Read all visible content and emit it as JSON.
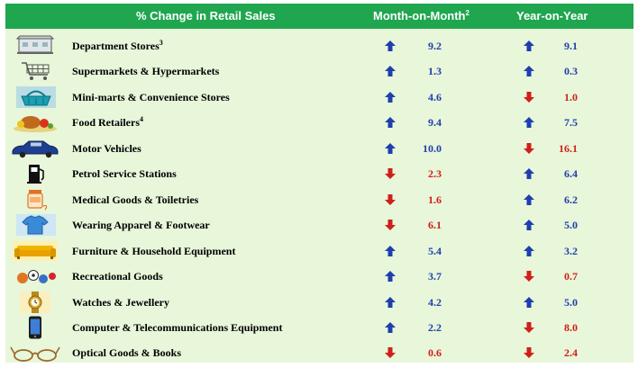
{
  "header": {
    "category": "% Change in Retail Sales",
    "month_on_month": "Month-on-Month",
    "month_on_month_note": "2",
    "year_on_year": "Year-on-Year"
  },
  "colors": {
    "header_bg": "#1fa64f",
    "table_bg": "#e8f6da",
    "up": "#1f3fae",
    "down": "#d0201a"
  },
  "chart_data": {
    "type": "table",
    "columns": [
      "% Change in Retail Sales",
      "Month-on-Month",
      "Year-on-Year"
    ],
    "rows": [
      {
        "label": "Department Stores",
        "note": "3",
        "icon": "department-store-icon",
        "mom": {
          "dir": "up",
          "value": "9.2"
        },
        "yoy": {
          "dir": "up",
          "value": "9.1"
        }
      },
      {
        "label": "Supermarkets & Hypermarkets",
        "note": "",
        "icon": "shopping-cart-icon",
        "mom": {
          "dir": "up",
          "value": "1.3"
        },
        "yoy": {
          "dir": "up",
          "value": "0.3"
        }
      },
      {
        "label": "Mini-marts & Convenience Stores",
        "note": "",
        "icon": "shopping-basket-icon",
        "mom": {
          "dir": "up",
          "value": "4.6"
        },
        "yoy": {
          "dir": "down",
          "value": "1.0"
        }
      },
      {
        "label": "Food Retailers",
        "note": "4",
        "icon": "food-icon",
        "mom": {
          "dir": "up",
          "value": "9.4"
        },
        "yoy": {
          "dir": "up",
          "value": "7.5"
        }
      },
      {
        "label": "Motor Vehicles",
        "note": "",
        "icon": "car-icon",
        "mom": {
          "dir": "up",
          "value": "10.0"
        },
        "yoy": {
          "dir": "down",
          "value": "16.1"
        }
      },
      {
        "label": "Petrol Service Stations",
        "note": "",
        "icon": "fuel-pump-icon",
        "mom": {
          "dir": "down",
          "value": "2.3"
        },
        "yoy": {
          "dir": "up",
          "value": "6.4"
        }
      },
      {
        "label": "Medical Goods & Toiletries",
        "note": "",
        "icon": "medicine-jar-icon",
        "mom": {
          "dir": "down",
          "value": "1.6"
        },
        "yoy": {
          "dir": "up",
          "value": "6.2"
        }
      },
      {
        "label": "Wearing Apparel & Footwear",
        "note": "",
        "icon": "t-shirt-icon",
        "mom": {
          "dir": "down",
          "value": "6.1"
        },
        "yoy": {
          "dir": "up",
          "value": "5.0"
        }
      },
      {
        "label": "Furniture & Household Equipment",
        "note": "",
        "icon": "sofa-icon",
        "mom": {
          "dir": "up",
          "value": "5.4"
        },
        "yoy": {
          "dir": "up",
          "value": "3.2"
        }
      },
      {
        "label": "Recreational Goods",
        "note": "",
        "icon": "sports-balls-icon",
        "mom": {
          "dir": "up",
          "value": "3.7"
        },
        "yoy": {
          "dir": "down",
          "value": "0.7"
        }
      },
      {
        "label": "Watches & Jewellery",
        "note": "",
        "icon": "watch-icon",
        "mom": {
          "dir": "up",
          "value": "4.2"
        },
        "yoy": {
          "dir": "up",
          "value": "5.0"
        }
      },
      {
        "label": "Computer & Telecommunications Equipment",
        "note": "",
        "icon": "mobile-phone-icon",
        "mom": {
          "dir": "up",
          "value": "2.2"
        },
        "yoy": {
          "dir": "down",
          "value": "8.0"
        }
      },
      {
        "label": "Optical Goods & Books",
        "note": "",
        "icon": "eyeglasses-icon",
        "mom": {
          "dir": "down",
          "value": "0.6"
        },
        "yoy": {
          "dir": "down",
          "value": "2.4"
        }
      }
    ]
  }
}
